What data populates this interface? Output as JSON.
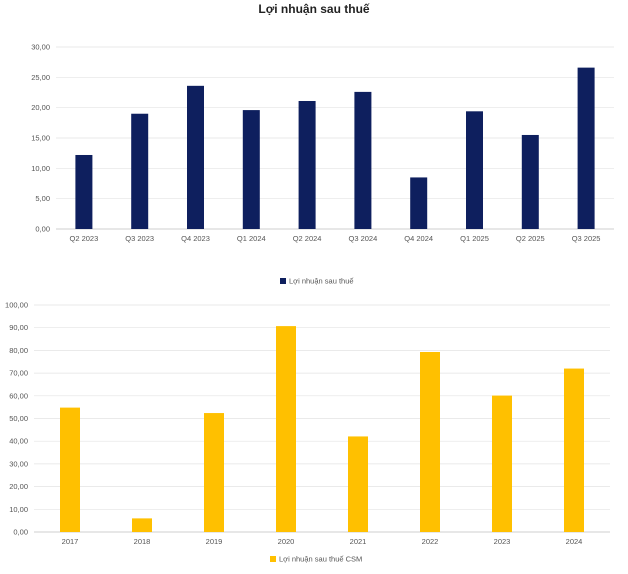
{
  "chart_data": [
    {
      "type": "bar",
      "title": "Lợi nhuận sau thuế",
      "categories": [
        "Q2 2023",
        "Q3 2023",
        "Q4 2023",
        "Q1 2024",
        "Q2 2024",
        "Q3 2024",
        "Q4 2024",
        "Q1 2025",
        "Q2 2025",
        "Q3 2025"
      ],
      "series": [
        {
          "name": "Lợi nhuận sau thuế",
          "color": "#0e1f5e",
          "values": [
            12.2,
            19.0,
            23.6,
            19.6,
            21.1,
            22.6,
            8.5,
            19.4,
            15.5,
            26.6
          ]
        }
      ],
      "ylim": [
        0,
        30
      ],
      "yticks": [
        "0,00",
        "5,00",
        "10,00",
        "15,00",
        "20,00",
        "25,00",
        "30,00"
      ],
      "xlabel": "",
      "ylabel": "",
      "grid": true,
      "legend": "bottom-center"
    },
    {
      "type": "bar",
      "title": "",
      "categories": [
        "2017",
        "2018",
        "2019",
        "2020",
        "2021",
        "2022",
        "2023",
        "2024"
      ],
      "series": [
        {
          "name": "Lợi nhuận sau thuế CSM",
          "color": "#ffc000",
          "values": [
            54.8,
            6.0,
            52.4,
            90.7,
            42.1,
            79.3,
            60.1,
            72.0
          ]
        }
      ],
      "ylim": [
        0,
        100
      ],
      "yticks": [
        "0,00",
        "10,00",
        "20,00",
        "30,00",
        "40,00",
        "50,00",
        "60,00",
        "70,00",
        "80,00",
        "90,00",
        "100,00"
      ],
      "xlabel": "",
      "ylabel": "",
      "grid": true,
      "legend": "bottom-left"
    }
  ]
}
